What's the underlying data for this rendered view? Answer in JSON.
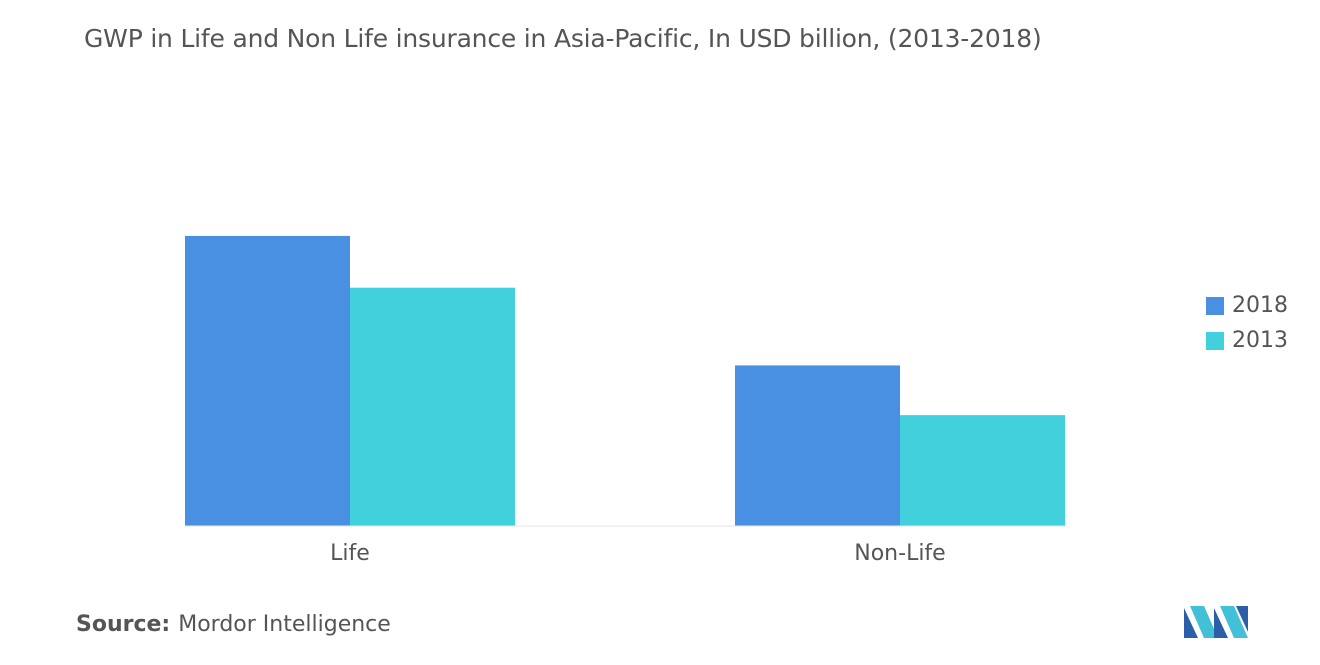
{
  "chart_data": {
    "type": "bar",
    "title": "GWP in Life and Non Life insurance in Asia-Pacific, In USD billion, (2013-2018)",
    "categories": [
      "Life",
      "Non-Life"
    ],
    "series": [
      {
        "name": "2018",
        "color": "#4a90e2",
        "values": [
          1400,
          775
        ]
      },
      {
        "name": "2013",
        "color": "#41d0dc",
        "values": [
          1150,
          535
        ]
      }
    ],
    "ylim": [
      0,
      2500
    ],
    "grid": false,
    "legend_position": "right"
  },
  "source": {
    "label": "Source:",
    "value": "Mordor Intelligence"
  },
  "logo": {
    "icon": "mordor-intelligence-logo-icon"
  }
}
